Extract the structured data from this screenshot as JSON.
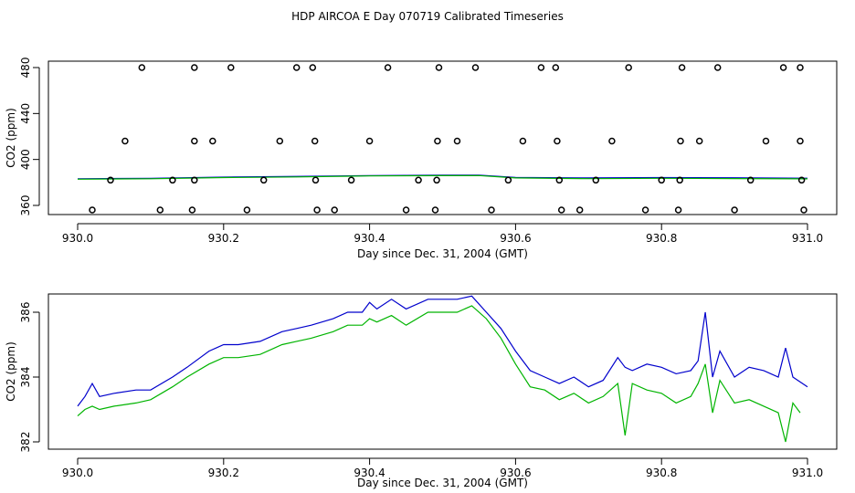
{
  "title": "HDP AIRCOA E  Day 070719  Calibrated Timeseries",
  "colors": {
    "blue": "#0000cc",
    "green": "#00b400",
    "axis": "#000000"
  },
  "chart_data": [
    {
      "type": "scatter",
      "xlabel": "Day since Dec. 31, 2004 (GMT)",
      "ylabel": "CO2 (ppm)",
      "xlim": [
        930.0,
        931.0
      ],
      "ylim": [
        352,
        484
      ],
      "xticks": [
        930.0,
        930.2,
        930.4,
        930.6,
        930.8,
        931.0
      ],
      "yticks": [
        360,
        400,
        440,
        480
      ],
      "series": [
        {
          "marker": "open-circle",
          "color": "#000000",
          "points": [
            [
              930.02,
              356
            ],
            [
              930.045,
              382
            ],
            [
              930.065,
              416
            ],
            [
              930.088,
              480
            ],
            [
              930.113,
              356
            ],
            [
              930.13,
              382
            ],
            [
              930.157,
              356
            ],
            [
              930.16,
              382
            ],
            [
              930.16,
              416
            ],
            [
              930.16,
              480
            ],
            [
              930.185,
              416
            ],
            [
              930.21,
              480
            ],
            [
              930.232,
              356
            ],
            [
              930.255,
              382
            ],
            [
              930.277,
              416
            ],
            [
              930.3,
              480
            ],
            [
              930.322,
              480
            ],
            [
              930.325,
              416
            ],
            [
              930.326,
              382
            ],
            [
              930.328,
              356
            ],
            [
              930.352,
              356
            ],
            [
              930.375,
              382
            ],
            [
              930.4,
              416
            ],
            [
              930.425,
              480
            ],
            [
              930.45,
              356
            ],
            [
              930.467,
              382
            ],
            [
              930.49,
              356
            ],
            [
              930.492,
              382
            ],
            [
              930.493,
              416
            ],
            [
              930.495,
              480
            ],
            [
              930.52,
              416
            ],
            [
              930.545,
              480
            ],
            [
              930.567,
              356
            ],
            [
              930.59,
              382
            ],
            [
              930.61,
              416
            ],
            [
              930.635,
              480
            ],
            [
              930.655,
              480
            ],
            [
              930.657,
              416
            ],
            [
              930.66,
              382
            ],
            [
              930.663,
              356
            ],
            [
              930.688,
              356
            ],
            [
              930.71,
              382
            ],
            [
              930.732,
              416
            ],
            [
              930.755,
              480
            ],
            [
              930.778,
              356
            ],
            [
              930.8,
              382
            ],
            [
              930.823,
              356
            ],
            [
              930.825,
              382
            ],
            [
              930.826,
              416
            ],
            [
              930.828,
              480
            ],
            [
              930.852,
              416
            ],
            [
              930.877,
              480
            ],
            [
              930.9,
              356
            ],
            [
              930.922,
              382
            ],
            [
              930.943,
              416
            ],
            [
              930.967,
              480
            ],
            [
              930.99,
              480
            ],
            [
              930.99,
              416
            ],
            [
              930.992,
              382
            ],
            [
              930.995,
              356
            ]
          ]
        },
        {
          "style": "line",
          "color": "#0000cc",
          "x": [
            930.0,
            930.1,
            930.2,
            930.3,
            930.4,
            930.5,
            930.55,
            930.6,
            930.7,
            930.8,
            930.9,
            931.0
          ],
          "y": [
            383.2,
            383.6,
            384.6,
            385.3,
            385.9,
            386.3,
            386.3,
            384.4,
            383.9,
            384.2,
            384.1,
            383.7
          ]
        },
        {
          "style": "line",
          "color": "#00b400",
          "x": [
            930.0,
            930.1,
            930.2,
            930.3,
            930.4,
            930.5,
            930.55,
            930.6,
            930.7,
            930.8,
            930.9,
            931.0
          ],
          "y": [
            382.8,
            383.2,
            384.2,
            384.8,
            385.7,
            385.9,
            386.0,
            383.9,
            383.3,
            383.6,
            383.4,
            383.1
          ]
        }
      ]
    },
    {
      "type": "line",
      "xlabel": "Day since Dec. 31, 2004 (GMT)",
      "ylabel": "CO2 (ppm)",
      "xlim": [
        930.0,
        931.0
      ],
      "ylim": [
        381.8,
        386.8
      ],
      "xticks": [
        930.0,
        930.2,
        930.4,
        930.6,
        930.8,
        931.0
      ],
      "yticks": [
        382,
        384,
        386
      ],
      "series": [
        {
          "color": "#0000cc",
          "x": [
            930.0,
            930.01,
            930.02,
            930.03,
            930.05,
            930.08,
            930.1,
            930.13,
            930.15,
            930.18,
            930.2,
            930.22,
            930.25,
            930.28,
            930.3,
            930.32,
            930.35,
            930.37,
            930.39,
            930.4,
            930.41,
            930.43,
            930.45,
            930.48,
            930.5,
            930.52,
            930.54,
            930.56,
            930.58,
            930.6,
            930.62,
            930.64,
            930.66,
            930.68,
            930.7,
            930.72,
            930.74,
            930.75,
            930.76,
            930.78,
            930.8,
            930.82,
            930.84,
            930.85,
            930.86,
            930.87,
            930.88,
            930.9,
            930.92,
            930.94,
            930.96,
            930.97,
            930.98,
            931.0
          ],
          "y": [
            383.1,
            383.4,
            383.8,
            383.4,
            383.5,
            383.6,
            383.6,
            384.0,
            384.3,
            384.8,
            385.0,
            385.0,
            385.1,
            385.4,
            385.5,
            385.6,
            385.8,
            386.0,
            386.0,
            386.3,
            386.1,
            386.4,
            386.1,
            386.4,
            386.4,
            386.4,
            386.5,
            386.0,
            385.5,
            384.8,
            384.2,
            384.0,
            383.8,
            384.0,
            383.7,
            383.9,
            384.6,
            384.3,
            384.2,
            384.4,
            384.3,
            384.1,
            384.2,
            384.5,
            386.0,
            384.0,
            384.8,
            384.0,
            384.3,
            384.2,
            384.0,
            384.9,
            384.0,
            383.7
          ]
        },
        {
          "color": "#00b400",
          "x": [
            930.0,
            930.01,
            930.02,
            930.03,
            930.05,
            930.08,
            930.1,
            930.13,
            930.15,
            930.18,
            930.2,
            930.22,
            930.25,
            930.28,
            930.3,
            930.32,
            930.35,
            930.37,
            930.39,
            930.4,
            930.41,
            930.43,
            930.45,
            930.48,
            930.5,
            930.52,
            930.54,
            930.56,
            930.58,
            930.6,
            930.62,
            930.64,
            930.66,
            930.68,
            930.7,
            930.72,
            930.74,
            930.75,
            930.76,
            930.78,
            930.8,
            930.82,
            930.84,
            930.85,
            930.86,
            930.87,
            930.88,
            930.9,
            930.92,
            930.94,
            930.96,
            930.97,
            930.98,
            930.99
          ],
          "y": [
            382.8,
            383.0,
            383.1,
            383.0,
            383.1,
            383.2,
            383.3,
            383.7,
            384.0,
            384.4,
            384.6,
            384.6,
            384.7,
            385.0,
            385.1,
            385.2,
            385.4,
            385.6,
            385.6,
            385.8,
            385.7,
            385.9,
            385.6,
            386.0,
            386.0,
            386.0,
            386.2,
            385.8,
            385.2,
            384.4,
            383.7,
            383.6,
            383.3,
            383.5,
            383.2,
            383.4,
            383.8,
            382.2,
            383.8,
            383.6,
            383.5,
            383.2,
            383.4,
            383.8,
            384.4,
            382.9,
            383.9,
            383.2,
            383.3,
            383.1,
            382.9,
            382.0,
            383.2,
            382.9
          ]
        }
      ]
    }
  ]
}
